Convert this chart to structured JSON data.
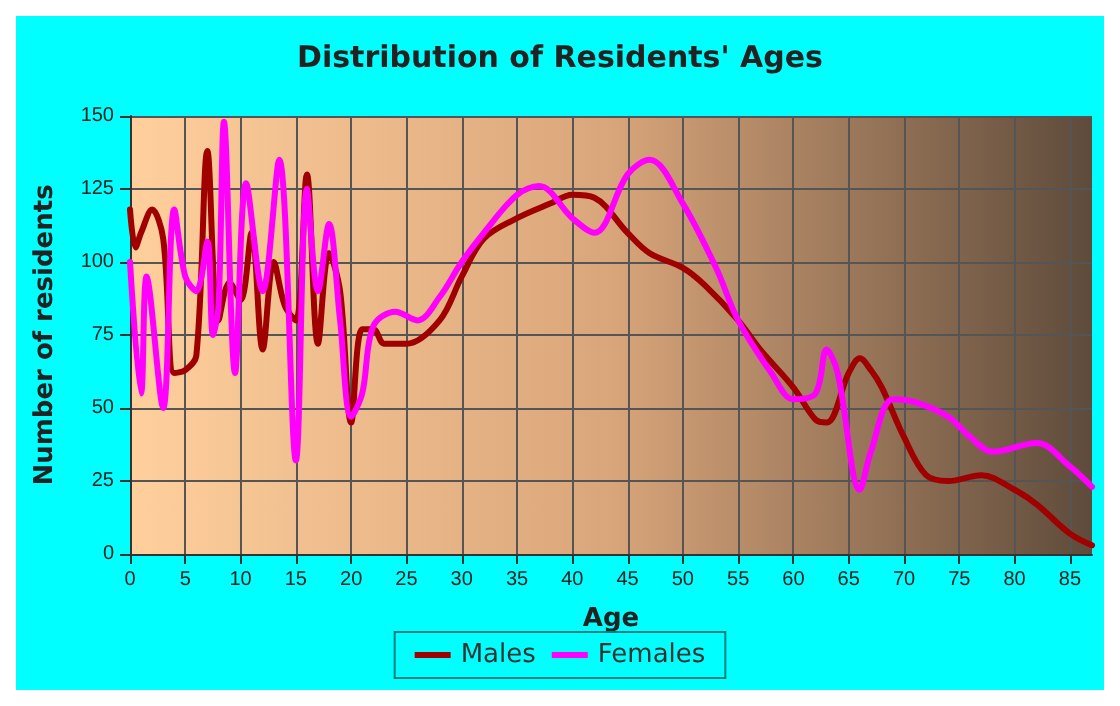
{
  "chart_data": {
    "type": "line",
    "title": "Distribution of Residents' Ages",
    "xlabel": "Age",
    "ylabel": "Number of residents",
    "xlim": [
      0,
      87
    ],
    "xticks": [
      0,
      5,
      10,
      15,
      20,
      25,
      30,
      35,
      40,
      45,
      50,
      55,
      60,
      65,
      70,
      75,
      80,
      85
    ],
    "ylim": [
      0,
      150
    ],
    "yticks": [
      0,
      25,
      50,
      75,
      100,
      125,
      150
    ],
    "grid": true,
    "legend": "bottom",
    "marker": "none",
    "line_style": "solid",
    "series": [
      {
        "name": "Males",
        "color": "#a00000",
        "x": [
          0,
          0.5,
          1,
          2,
          3,
          4,
          5,
          6,
          7,
          8,
          9,
          10,
          11,
          12,
          13,
          14,
          15,
          16,
          17,
          18,
          19,
          20,
          21,
          22,
          23,
          25,
          28,
          30,
          32,
          35,
          38,
          40,
          42,
          45,
          47,
          50,
          52,
          55,
          57,
          60,
          62,
          63,
          65,
          66,
          67,
          68,
          70,
          72,
          74,
          77,
          80,
          82,
          85,
          87
        ],
        "values": [
          118,
          105,
          110,
          118,
          108,
          62,
          63,
          68,
          138,
          80,
          93,
          87,
          110,
          70,
          100,
          85,
          80,
          130,
          72,
          103,
          90,
          45,
          77,
          77,
          72,
          72,
          80,
          95,
          108,
          115,
          120,
          123,
          122,
          110,
          103,
          98,
          92,
          80,
          70,
          57,
          46,
          45,
          62,
          67,
          63,
          57,
          40,
          27,
          25,
          27,
          22,
          17,
          7,
          3
        ]
      },
      {
        "name": "Females",
        "color": "#ff00ff",
        "x": [
          0,
          1,
          1.5,
          3,
          4,
          5,
          6,
          7,
          7.5,
          8,
          8.5,
          9.5,
          10.5,
          12,
          13.5,
          15,
          16,
          17,
          18,
          19,
          20,
          21,
          22,
          24,
          26,
          28,
          30,
          32,
          35,
          37,
          40,
          42,
          45,
          47,
          50,
          53,
          55,
          58,
          60,
          62,
          63,
          64,
          66,
          67,
          69,
          71,
          74,
          76,
          78,
          82,
          85,
          87
        ],
        "values": [
          100,
          55,
          95,
          50,
          118,
          95,
          90,
          107,
          75,
          85,
          148,
          62,
          127,
          90,
          135,
          32,
          125,
          90,
          113,
          80,
          47,
          55,
          78,
          83,
          80,
          88,
          100,
          110,
          123,
          126,
          115,
          110,
          130,
          135,
          120,
          98,
          80,
          62,
          53,
          55,
          70,
          62,
          22,
          35,
          53,
          52,
          47,
          40,
          35,
          38,
          30,
          23
        ]
      }
    ]
  }
}
